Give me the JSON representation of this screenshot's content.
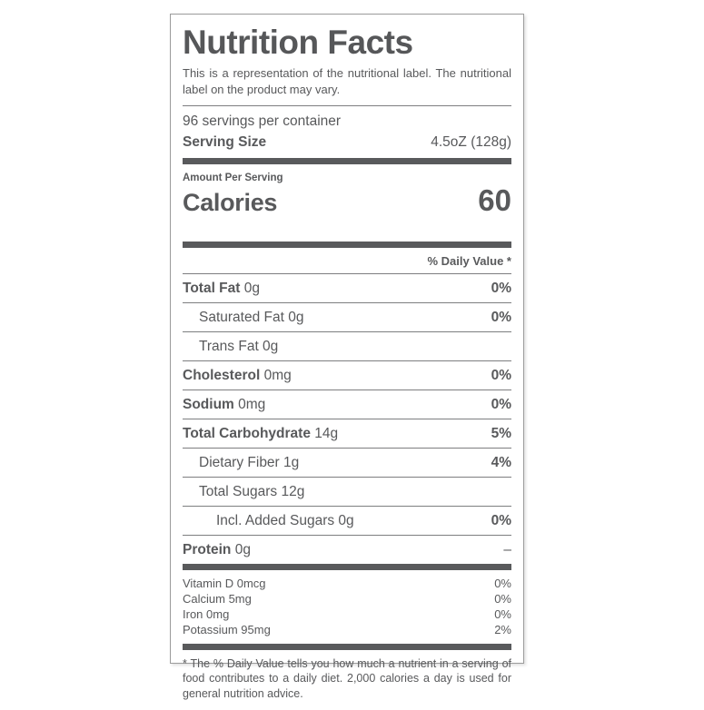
{
  "colors": {
    "text": "#58595b",
    "rule_thin": "#7d7e80",
    "rule_thick": "#595a5c",
    "card_border": "#9b9b9b",
    "background": "#ffffff"
  },
  "label": {
    "title": "Nutrition Facts",
    "disclaimer": "This is a representation of the nutritional label. The nutritional label on the product may vary.",
    "servings_per_container": "96 servings per container",
    "serving_size_label": "Serving Size",
    "serving_size_value": "4.5oZ (128g)",
    "amount_per_serving": "Amount Per Serving",
    "calories_label": "Calories",
    "calories_value": "60",
    "daily_value_header": "% Daily Value *",
    "nutrients": [
      {
        "name": "Total Fat",
        "amount": "0g",
        "dv": "0%",
        "bold": true,
        "indent": 0,
        "dv_bold": true
      },
      {
        "name": "Saturated Fat",
        "amount": "0g",
        "dv": "0%",
        "bold": false,
        "indent": 1,
        "dv_bold": true
      },
      {
        "name": "Trans Fat",
        "amount": "0g",
        "dv": "",
        "bold": false,
        "indent": 1,
        "dv_bold": false
      },
      {
        "name": "Cholesterol",
        "amount": "0mg",
        "dv": "0%",
        "bold": true,
        "indent": 0,
        "dv_bold": true
      },
      {
        "name": "Sodium",
        "amount": "0mg",
        "dv": "0%",
        "bold": true,
        "indent": 0,
        "dv_bold": true
      },
      {
        "name": "Total Carbohydrate",
        "amount": "14g",
        "dv": "5%",
        "bold": true,
        "indent": 0,
        "dv_bold": true
      },
      {
        "name": "Dietary Fiber",
        "amount": "1g",
        "dv": "4%",
        "bold": false,
        "indent": 1,
        "dv_bold": true
      },
      {
        "name": "Total Sugars",
        "amount": "12g",
        "dv": "",
        "bold": false,
        "indent": 1,
        "dv_bold": false
      },
      {
        "name": "Incl. Added Sugars",
        "amount": "0g",
        "dv": "0%",
        "bold": false,
        "indent": 2,
        "dv_bold": true
      },
      {
        "name": "Protein",
        "amount": "0g",
        "dv": "–",
        "bold": true,
        "indent": 0,
        "dv_bold": false
      }
    ],
    "micronutrients": [
      {
        "name": "Vitamin D 0mcg",
        "dv": "0%"
      },
      {
        "name": "Calcium 5mg",
        "dv": "0%"
      },
      {
        "name": "Iron 0mg",
        "dv": "0%"
      },
      {
        "name": "Potassium 95mg",
        "dv": "2%"
      }
    ],
    "footnote": "* The % Daily Value tells you how much a nutrient in a serving of food contributes to a daily diet. 2,000 calories a day is used for general nutrition advice."
  }
}
